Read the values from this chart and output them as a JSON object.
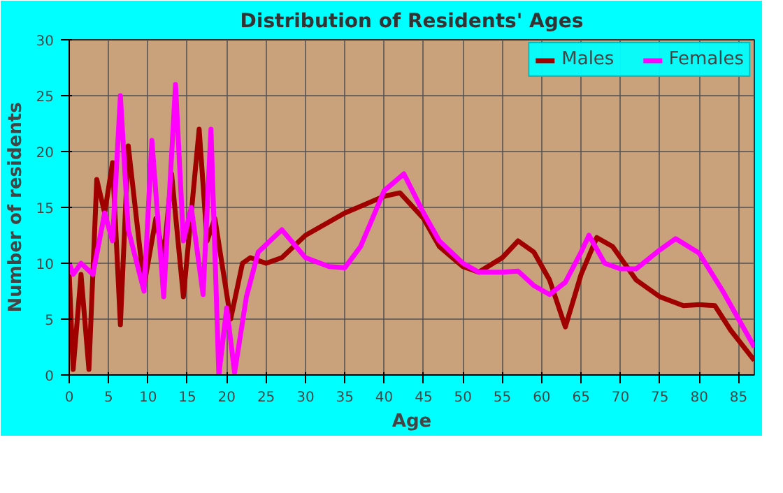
{
  "chart_data": {
    "type": "line",
    "title": "Distribution of Residents' Ages",
    "xlabel": "Age",
    "ylabel": "Number of residents",
    "xlim": [
      0,
      87
    ],
    "ylim": [
      0,
      30
    ],
    "xticks": [
      0,
      5,
      10,
      15,
      20,
      25,
      30,
      35,
      40,
      45,
      50,
      55,
      60,
      65,
      70,
      75,
      80,
      85
    ],
    "yticks": [
      0,
      5,
      10,
      15,
      20,
      25,
      30
    ],
    "grid": true,
    "legend": "top right",
    "line_style": "solid",
    "series": [
      {
        "name": "Males",
        "color": "#a00000",
        "x": [
          0,
          0.5,
          1.5,
          2.5,
          3.5,
          4.5,
          5.5,
          6.5,
          7.5,
          9.5,
          11,
          12,
          13,
          14.5,
          16.5,
          17.5,
          18.5,
          20.5,
          22,
          23,
          25,
          27,
          30,
          35,
          40,
          42,
          45,
          47,
          50,
          52,
          55,
          57,
          59,
          61,
          63,
          65,
          67,
          69,
          72,
          75,
          78,
          80,
          82,
          84,
          87
        ],
        "values": [
          9,
          0.5,
          9,
          0.5,
          17.5,
          14.5,
          19,
          4.5,
          20.5,
          8,
          14,
          10.5,
          18,
          7,
          22,
          12,
          14,
          5,
          10,
          10.5,
          10,
          10.5,
          12.5,
          14.5,
          16,
          16.3,
          14,
          11.5,
          9.7,
          9.2,
          10.5,
          12,
          11,
          8.5,
          4.3,
          9,
          12.3,
          11.5,
          8.5,
          7,
          6.2,
          6.3,
          6.2,
          4,
          1.3
        ]
      },
      {
        "name": "Females",
        "color": "#ff00ff",
        "x": [
          0,
          0.5,
          1.5,
          3,
          4.5,
          5.5,
          6.5,
          7.5,
          9.5,
          10.5,
          12,
          13.5,
          14.5,
          15.5,
          17,
          18,
          19,
          20,
          21,
          22.5,
          24,
          27,
          30,
          33,
          35,
          37,
          40,
          42.5,
          45,
          47,
          50,
          52,
          55,
          57,
          59,
          61,
          63,
          65,
          66,
          68,
          70,
          72,
          75,
          77,
          80,
          83,
          87
        ],
        "values": [
          10,
          9,
          10,
          9,
          14.5,
          12,
          25,
          13,
          7.5,
          21,
          7,
          26,
          12,
          15,
          7.2,
          22,
          0,
          6,
          0.2,
          7,
          11,
          13,
          10.5,
          9.7,
          9.6,
          11.5,
          16.5,
          18,
          14.5,
          12,
          10,
          9.2,
          9.2,
          9.3,
          8,
          7.2,
          8.3,
          11,
          12.5,
          10,
          9.5,
          9.5,
          11.2,
          12.2,
          10.9,
          7.5,
          2.5
        ]
      }
    ]
  }
}
